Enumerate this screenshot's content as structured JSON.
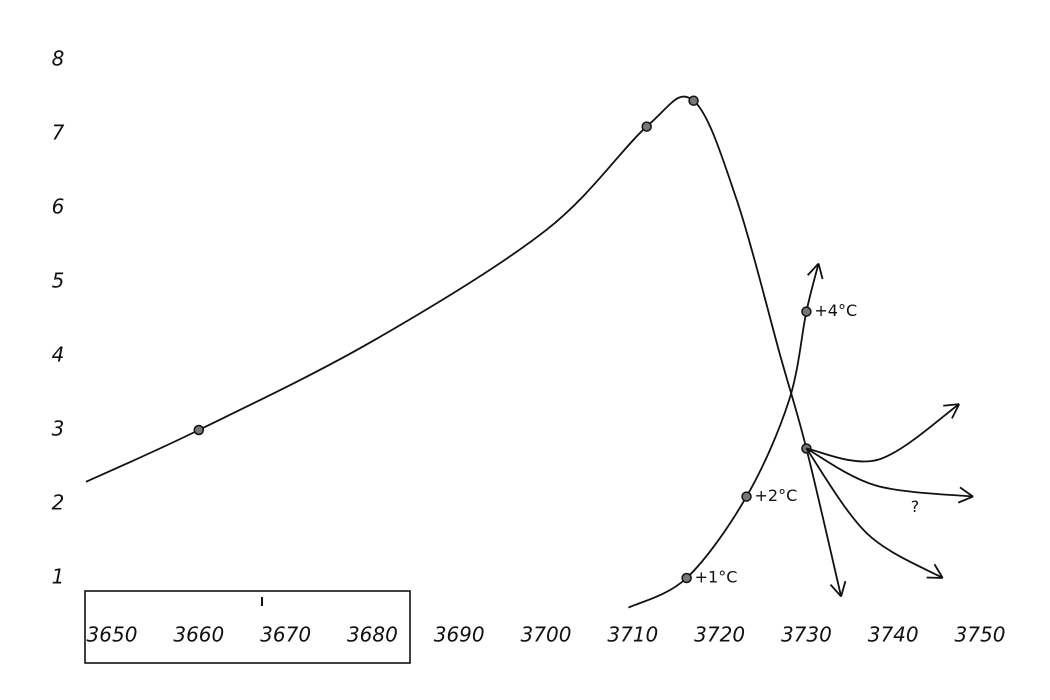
{
  "chart_data": {
    "type": "line",
    "xlim": [
      3650,
      3750
    ],
    "ylim": [
      1,
      8
    ],
    "xticks": [
      3650,
      3660,
      3670,
      3680,
      3690,
      3700,
      3710,
      3720,
      3730,
      3740,
      3750
    ],
    "yticks": [
      1,
      2,
      3,
      4,
      5,
      6,
      7,
      8
    ],
    "grid": false,
    "series": [
      {
        "color": "#111111",
        "arrow": true,
        "x": [
          3647,
          3660,
          3680,
          3700,
          3711.6,
          3717,
          3722,
          3727,
          3730,
          3734
        ],
        "values": [
          2.3,
          3.0,
          4.2,
          5.7,
          7.1,
          7.45,
          6.1,
          4.0,
          2.75,
          0.75
        ],
        "markers": [
          false,
          true,
          false,
          false,
          true,
          true,
          false,
          false,
          true,
          false
        ]
      },
      {
        "color": "#111111",
        "arrow": true,
        "x": [
          3709.5,
          3716.2,
          3723.1,
          3728,
          3730,
          3731.4
        ],
        "values": [
          0.6,
          1.0,
          2.1,
          3.4,
          4.6,
          5.25
        ],
        "markers": [
          false,
          true,
          true,
          false,
          true,
          false
        ]
      },
      {
        "color": "#111111",
        "arrow": true,
        "x": [
          3730,
          3738.3,
          3747.6
        ],
        "values": [
          2.75,
          2.6,
          3.35
        ]
      },
      {
        "color": "#111111",
        "arrow": true,
        "x": [
          3730,
          3738,
          3749.2
        ],
        "values": [
          2.75,
          2.25,
          2.1
        ]
      },
      {
        "color": "#111111",
        "arrow": true,
        "x": [
          3730,
          3737,
          3745.7
        ],
        "values": [
          2.75,
          1.6,
          1.0
        ]
      }
    ],
    "annotations": [
      {
        "text": "+1°C",
        "x": 3716.2,
        "y": 1.0
      },
      {
        "text": "+2°C",
        "x": 3723.1,
        "y": 2.1
      },
      {
        "text": "+4°C",
        "x": 3730,
        "y": 4.6
      },
      {
        "text": "?",
        "x": 3741.1,
        "y": 1.95
      }
    ]
  }
}
